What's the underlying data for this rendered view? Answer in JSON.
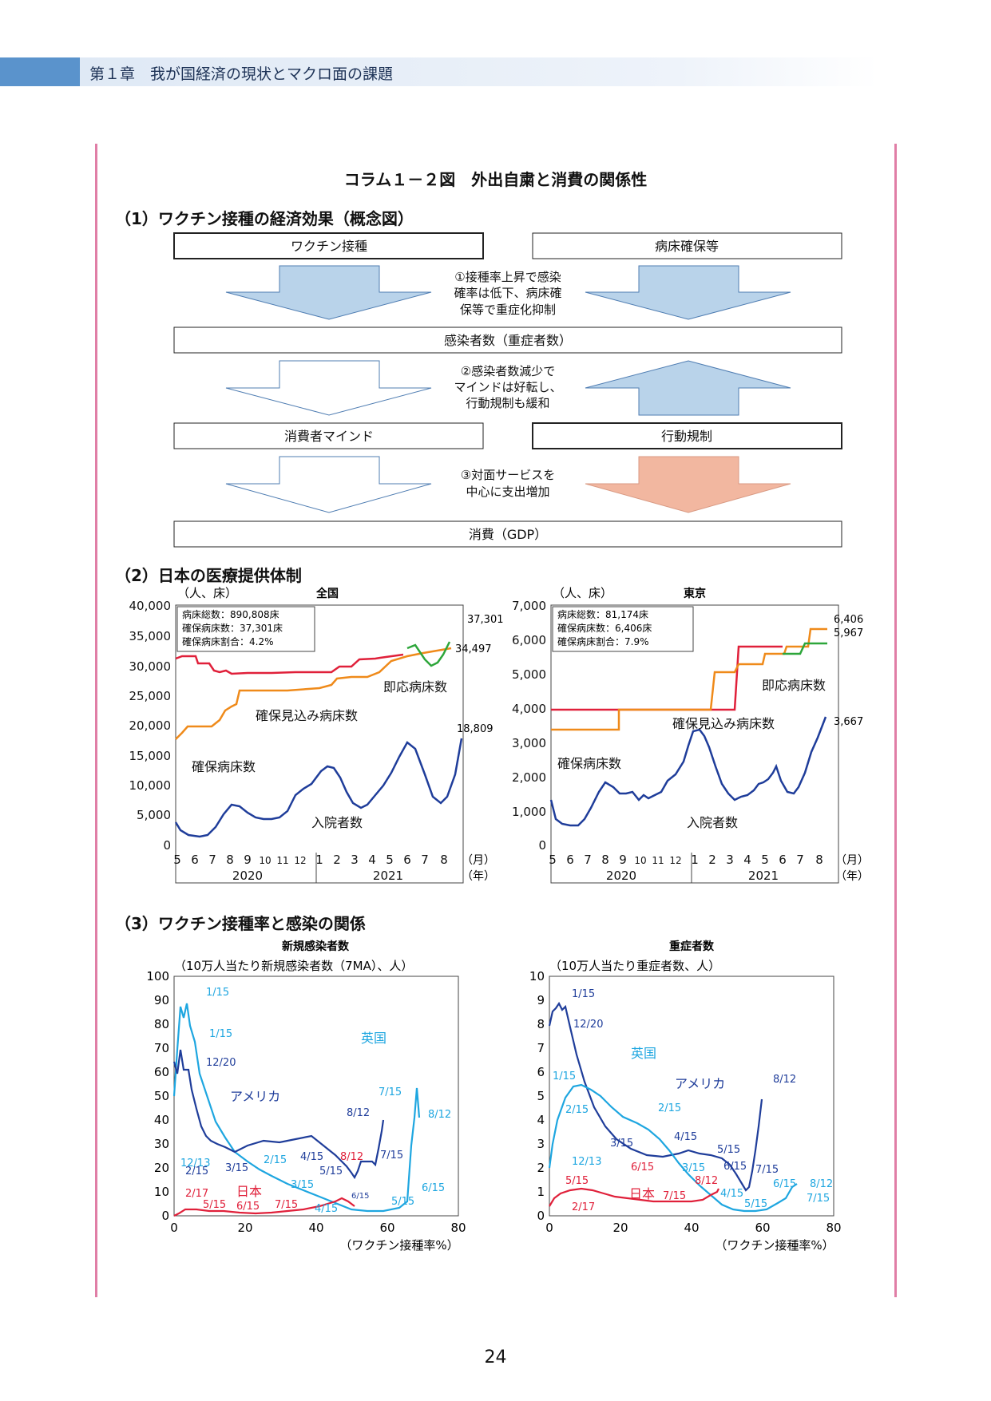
{
  "header": {
    "chapter": "第１章　我が国経済の現状とマクロ面の課題"
  },
  "figure": {
    "title": "コラム１－２図　外出自粛と消費の関係性"
  },
  "section1": {
    "title": "（1）ワクチン接種の経済効果（概念図）",
    "boxes": {
      "vaccine": "ワクチン接種",
      "beds": "病床確保等",
      "infected": "感染者数（重症者数）",
      "mind": "消費者マインド",
      "restriction": "行動規制",
      "consumption": "消費（GDP）"
    },
    "notes": {
      "n1": [
        "①接種率上昇で感染",
        "確率は低下、病床確",
        "保等で重症化抑制"
      ],
      "n2": [
        "②感染者数減少で",
        "マインドは好転し、",
        "行動規制も緩和"
      ],
      "n3": [
        "③対面サービスを",
        "中心に支出増加"
      ]
    },
    "colors": {
      "blue_arrow": "#b9d3ea",
      "outline_arrow": "#ffffff",
      "salmon_arrow": "#f2b7a0",
      "arrow_edge": "#4f7db2"
    }
  },
  "section2": {
    "title": "（2）日本の医療提供体制",
    "common": {
      "unit": "（人、床）",
      "month_unit": "（月）",
      "year_unit": "（年）",
      "months": [
        "5",
        "6",
        "7",
        "8",
        "9",
        "10",
        "11",
        "12",
        "1",
        "2",
        "3",
        "4",
        "5",
        "6",
        "7",
        "8"
      ],
      "years": [
        "2020",
        "2021"
      ]
    },
    "charts": [
      {
        "title": "全国",
        "legend": [
          "病床総数：890,808床",
          "確保病床数：37,301床",
          "確保病床割合：4.2%"
        ],
        "yticks": [
          "40,000",
          "35,000",
          "30,000",
          "25,000",
          "20,000",
          "15,000",
          "10,000",
          "5,000",
          "0"
        ],
        "end_labels": [
          "37,301",
          "34,497",
          "18,809"
        ],
        "annotations": {
          "immediate": "即応病床数",
          "planned": "確保見込み病床数",
          "secured": "確保病床数",
          "inpatients": "入院者数"
        }
      },
      {
        "title": "東京",
        "legend": [
          "病床総数：81,174床",
          "確保病床数：6,406床",
          "確保病床割合：7.9%"
        ],
        "yticks": [
          "7,000",
          "6,000",
          "5,000",
          "4,000",
          "3,000",
          "2,000",
          "1,000",
          "0"
        ],
        "end_labels": [
          "6,406",
          "5,967",
          "3,667"
        ],
        "annotations": {
          "immediate": "即応病床数",
          "planned": "確保見込み病床数",
          "secured": "確保病床数",
          "inpatients": "入院者数"
        }
      }
    ]
  },
  "section3": {
    "title": "（3）ワクチン接種率と感染の関係",
    "x_title": "（ワクチン接種率%）",
    "xticks": [
      "0",
      "20",
      "40",
      "60",
      "80"
    ],
    "charts": [
      {
        "title": "新規感染者数",
        "subtitle": "（10万人当たり新規感染者数（7MA）、人）",
        "yticks": [
          "100",
          "90",
          "80",
          "70",
          "60",
          "50",
          "40",
          "30",
          "20",
          "10",
          "0"
        ],
        "series_labels": {
          "us": "アメリカ",
          "uk": "英国",
          "jp": "日本"
        },
        "date_labels": {
          "uk": [
            "1/15",
            "12/13",
            "3/15",
            "2/15",
            "4/15",
            "5/15",
            "6/15",
            "7/15",
            "8/12"
          ],
          "us": [
            "1/15",
            "12/20",
            "2/15",
            "3/15",
            "4/15",
            "5/15",
            "6/15",
            "7/15",
            "8/12"
          ],
          "jp": [
            "2/17",
            "5/15",
            "6/15",
            "7/15",
            "8/12"
          ]
        }
      },
      {
        "title": "重症者数",
        "subtitle": "（10万人当たり重症者数、人）",
        "yticks": [
          "10",
          "9",
          "8",
          "7",
          "6",
          "5",
          "4",
          "3",
          "2",
          "1",
          "0"
        ],
        "series_labels": {
          "us": "アメリカ",
          "uk": "英国",
          "jp": "日本"
        },
        "date_labels": {
          "us": [
            "1/15",
            "12/20",
            "3/15",
            "4/15",
            "5/15",
            "6/15",
            "7/15",
            "8/12"
          ],
          "uk": [
            "1/15",
            "2/15",
            "12/13",
            "2/15",
            "3/15",
            "4/15",
            "5/15",
            "6/15",
            "7/15",
            "8/12"
          ],
          "jp": [
            "5/15",
            "6/15",
            "2/17",
            "7/15",
            "8/12"
          ]
        }
      }
    ]
  },
  "page": {
    "number": "24"
  }
}
